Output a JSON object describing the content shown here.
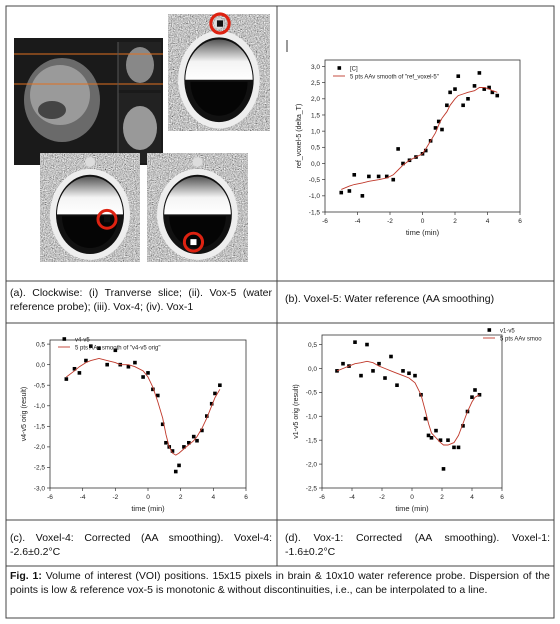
{
  "chart_data": [
    {
      "type": "scatter",
      "xlabel": "time (min)",
      "ylabel": "ref_voxel-5 (delta_T)",
      "xlim": [
        -6,
        6
      ],
      "ylim": [
        -1.5,
        3.2
      ],
      "xticks": [
        -6,
        -4,
        -2,
        0,
        2,
        4,
        6
      ],
      "yticks": [
        {
          "value": 3.0,
          "label": "3,0"
        },
        {
          "value": 2.5,
          "label": "2,5"
        },
        {
          "value": 2.0,
          "label": "2,0"
        },
        {
          "value": 1.5,
          "label": "1,5"
        },
        {
          "value": 1.0,
          "label": "1,0"
        },
        {
          "value": 0.5,
          "label": "0,5"
        },
        {
          "value": 0.0,
          "label": "0,0"
        },
        {
          "value": -0.5,
          "label": "-0,5"
        },
        {
          "value": -1.0,
          "label": "-1,0"
        },
        {
          "value": -1.5,
          "label": "-1,5"
        }
      ],
      "x": [
        -5,
        -4.5,
        -4.2,
        -3.7,
        -3.3,
        -2.7,
        -2.2,
        -1.8,
        -1.5,
        -1.2,
        -0.8,
        -0.4,
        0,
        0.2,
        0.5,
        0.8,
        1.0,
        1.2,
        1.5,
        1.7,
        2.0,
        2.2,
        2.5,
        2.8,
        3.2,
        3.5,
        3.8,
        4.1,
        4.3,
        4.6
      ],
      "series": [
        {
          "name": "[C]",
          "color": "#000000",
          "style": "marker",
          "values": [
            -0.9,
            -0.85,
            -0.35,
            -1.0,
            -0.4,
            -0.4,
            -0.4,
            -0.5,
            0.45,
            0.0,
            0.1,
            0.2,
            0.3,
            0.4,
            0.7,
            1.1,
            1.3,
            1.05,
            1.8,
            2.2,
            2.3,
            2.7,
            1.8,
            2.0,
            2.4,
            2.8,
            2.3,
            2.35,
            2.2,
            2.1
          ]
        },
        {
          "name": "5 pts AAv smooth of \"ref_voxel-5\"",
          "color": "#c0392b",
          "style": "line",
          "values": [
            -0.8,
            -0.7,
            -0.65,
            -0.6,
            -0.55,
            -0.5,
            -0.45,
            -0.35,
            -0.2,
            -0.05,
            0.1,
            0.2,
            0.3,
            0.45,
            0.7,
            0.95,
            1.2,
            1.4,
            1.6,
            1.8,
            2.0,
            2.1,
            2.15,
            2.2,
            2.25,
            2.35,
            2.35,
            2.3,
            2.25,
            2.2
          ]
        }
      ]
    },
    {
      "type": "scatter",
      "xlabel": "time (min)",
      "ylabel": "v4-v5 orig (result)",
      "xlim": [
        -6,
        6
      ],
      "ylim": [
        -3.0,
        0.6
      ],
      "xticks": [
        -6,
        -4,
        -2,
        0,
        2,
        4,
        6
      ],
      "yticks": [
        {
          "value": 0.5,
          "label": "0,5"
        },
        {
          "value": 0.0,
          "label": "0,0"
        },
        {
          "value": -0.5,
          "label": "-0,5"
        },
        {
          "value": -1.0,
          "label": "-1,0"
        },
        {
          "value": -1.5,
          "label": "-1,5"
        },
        {
          "value": -2.0,
          "label": "-2,0"
        },
        {
          "value": -2.5,
          "label": "-2,5"
        },
        {
          "value": -3.0,
          "label": "-3,0"
        }
      ],
      "x": [
        -5,
        -4.5,
        -4.2,
        -3.8,
        -3.5,
        -3,
        -2.5,
        -2,
        -1.7,
        -1.2,
        -0.8,
        -0.3,
        0,
        0.3,
        0.6,
        0.9,
        1.1,
        1.3,
        1.5,
        1.7,
        1.9,
        2.2,
        2.5,
        2.8,
        3.0,
        3.3,
        3.6,
        3.9,
        4.1,
        4.4
      ],
      "series": [
        {
          "name": "v4-v5",
          "color": "#000000",
          "style": "marker",
          "values": [
            -0.35,
            -0.1,
            -0.2,
            0.1,
            0.45,
            0.4,
            0.0,
            0.35,
            0.0,
            -0.05,
            0.05,
            -0.3,
            -0.2,
            -0.6,
            -0.75,
            -1.45,
            -1.9,
            -2.0,
            -2.1,
            -2.6,
            -2.45,
            -2.0,
            -1.9,
            -1.75,
            -1.85,
            -1.6,
            -1.25,
            -0.95,
            -0.7,
            -0.5
          ]
        },
        {
          "name": "5 pts AAv smooth of \"v4-v5 orig\"",
          "color": "#c0392b",
          "style": "line",
          "values": [
            -0.3,
            -0.15,
            -0.05,
            0.05,
            0.1,
            0.15,
            0.1,
            0.05,
            0.0,
            0.0,
            -0.05,
            -0.15,
            -0.3,
            -0.55,
            -0.9,
            -1.3,
            -1.7,
            -2.0,
            -2.15,
            -2.2,
            -2.15,
            -2.05,
            -1.95,
            -1.85,
            -1.75,
            -1.55,
            -1.3,
            -1.0,
            -0.8,
            -0.6
          ]
        }
      ]
    },
    {
      "type": "scatter",
      "xlabel": "time (min)",
      "ylabel": "v1-v5 orig (result)",
      "xlim": [
        -6,
        6
      ],
      "ylim": [
        -2.5,
        0.7
      ],
      "xticks": [
        -6,
        -4,
        -2,
        0,
        2,
        4,
        6
      ],
      "yticks": [
        {
          "value": 0.5,
          "label": "0,5"
        },
        {
          "value": 0.0,
          "label": "0,0"
        },
        {
          "value": -0.5,
          "label": "-0,5"
        },
        {
          "value": -1.0,
          "label": "-1,0"
        },
        {
          "value": -1.5,
          "label": "-1,5"
        },
        {
          "value": -2.0,
          "label": "-2,0"
        },
        {
          "value": -2.5,
          "label": "-2,5"
        }
      ],
      "x": [
        -5,
        -4.6,
        -4.2,
        -3.8,
        -3.4,
        -3.0,
        -2.6,
        -2.2,
        -1.8,
        -1.4,
        -1.0,
        -0.6,
        -0.2,
        0.2,
        0.6,
        0.9,
        1.1,
        1.3,
        1.6,
        1.9,
        2.1,
        2.4,
        2.8,
        3.1,
        3.4,
        3.7,
        4.0,
        4.2,
        4.5
      ],
      "series": [
        {
          "name": "v1-v5",
          "color": "#000000",
          "style": "marker",
          "values": [
            -0.05,
            0.1,
            0.05,
            0.55,
            -0.15,
            0.5,
            -0.05,
            0.1,
            -0.2,
            0.25,
            -0.35,
            -0.05,
            -0.1,
            -0.15,
            -0.55,
            -1.05,
            -1.4,
            -1.45,
            -1.3,
            -1.5,
            -2.1,
            -1.5,
            -1.65,
            -1.65,
            -1.2,
            -0.9,
            -0.6,
            -0.45,
            -0.55
          ]
        },
        {
          "name": "5 pts AAv smoo",
          "color": "#c0392b",
          "style": "line",
          "values": [
            -0.05,
            0.0,
            0.05,
            0.1,
            0.12,
            0.15,
            0.12,
            0.05,
            0.0,
            -0.05,
            -0.1,
            -0.15,
            -0.2,
            -0.3,
            -0.55,
            -0.9,
            -1.15,
            -1.35,
            -1.45,
            -1.55,
            -1.6,
            -1.6,
            -1.55,
            -1.4,
            -1.15,
            -0.9,
            -0.7,
            -0.6,
            -0.55
          ]
        }
      ]
    }
  ],
  "captions": [
    "(a). Clockwise: (i) Tranverse slice; (ii). Vox-5 (water reference probe); (iii). Vox-4; (iv). Vox-1",
    "(b). Voxel-5: Water reference (AA smoothing)",
    "(c). Voxel-4: Corrected (AA smoothing). Voxel-4: -2.6±0.2°C",
    "(d). Vox-1: Corrected (AA smoothing). Voxel-1: -1.6±0.2°C"
  ],
  "figure_caption": {
    "label": "Fig. 1:",
    "text": "Volume of interest (VOI) positions. 15x15 pixels in brain & 10x10 water reference probe. Dispersion of the points is low & reference vox-5 is monotonic & without discontinuities, i.e., can be interpolated to a line."
  }
}
